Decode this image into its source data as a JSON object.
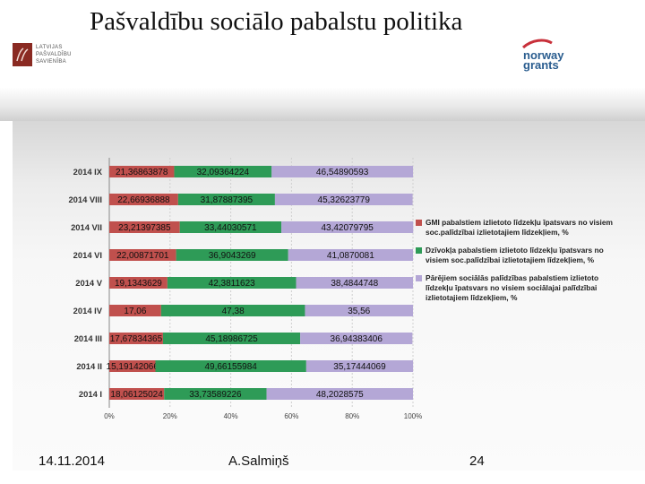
{
  "title": "Pašvaldību sociālo pabalstu politika",
  "left_logo": {
    "lines": [
      "LATVIJAS",
      "PAŠVALDĪBU",
      "SAVIENĪBA"
    ]
  },
  "right_logo": {
    "line1": "norway",
    "line2": "grants"
  },
  "footer": {
    "date": "14.11.2014",
    "author": "A.Salmiņš",
    "page": "24"
  },
  "colors": {
    "gmi": "#c0504d",
    "dwelling": "#2e9b57",
    "other": "#b4a7d6"
  },
  "chart_data": {
    "type": "bar",
    "orientation": "horizontal",
    "stacked": "percent",
    "categories": [
      "2014 IX",
      "2014 VIII",
      "2014 VII",
      "2014 VI",
      "2014 V",
      "2014 IV",
      "2014 III",
      "2014 II",
      "2014 I"
    ],
    "series": [
      {
        "name": "GMI pabalstiem izlietoto līdzekļu īpatsvars no visiem soc.palīdzībai izlietotajiem līdzekļiem, %",
        "values": [
          21.36863878,
          22.66936888,
          23.21397385,
          22.00871701,
          19.1343629,
          17.06,
          17.67834365,
          15.19142066,
          18.06125024
        ],
        "labels": [
          "21,36863878",
          "22,66936888",
          "23,21397385",
          "22,00871701",
          "19,1343629",
          "17,06",
          "17,67834365",
          "15,19142066",
          "18,06125024"
        ]
      },
      {
        "name": "Dzīvokļa pabalstiem izlietoto līdzekļu īpatsvars no visiem soc.palīdzībai izlietotajiem līdzekļiem, %",
        "values": [
          32.09364224,
          31.87887395,
          33.44030571,
          36.9043269,
          42.3811623,
          47.38,
          45.18986725,
          49.66155984,
          33.73589226
        ],
        "labels": [
          "32,09364224",
          "31,87887395",
          "33,44030571",
          "36,9043269",
          "42,3811623",
          "47,38",
          "45,18986725",
          "49,66155984",
          "33,73589226"
        ]
      },
      {
        "name": "Pārējiem sociālās palīdzības pabalstiem izlietoto līdzekļu īpatsvars no visiem sociālajai palīdzībai izlietotajiem līdzekļiem, %",
        "values": [
          46.54890593,
          45.32623779,
          43.42079795,
          41.0870081,
          38.4844748,
          35.56,
          36.94383406,
          35.17444069,
          48.2028575
        ],
        "labels": [
          "46,54890593",
          "45,32623779",
          "43,42079795",
          "41,0870081",
          "38,4844748",
          "35,56",
          "36,94383406",
          "35,17444069",
          "48,2028575"
        ]
      }
    ],
    "x_ticks": [
      "0%",
      "20%",
      "40%",
      "60%",
      "80%",
      "100%"
    ],
    "xlim": [
      0,
      100
    ],
    "legend_position": "right"
  }
}
